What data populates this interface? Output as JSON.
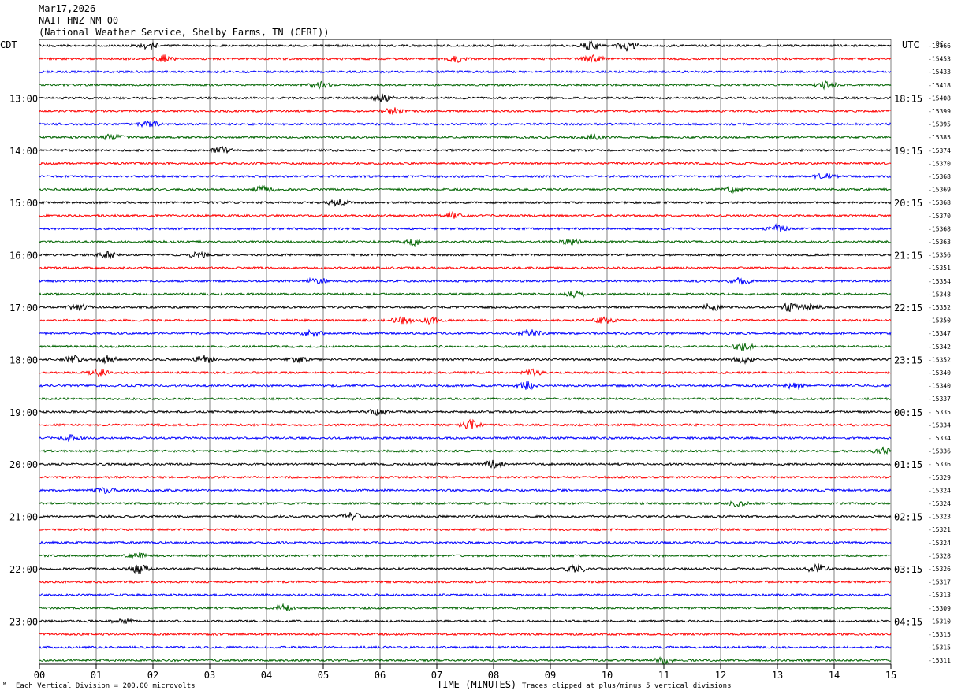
{
  "header": {
    "date": "Mar17,2026",
    "station": "NAIT HNZ NM 00",
    "network": "(National Weather Service, Shelby Farms, TN (CERI))"
  },
  "footer": {
    "scale_note": "Each Vertical Division =  200.00 microvolts",
    "x_title": "TIME (MINUTES)",
    "clip_note": "Traces clipped at plus/minus 5 vertical divisions"
  },
  "colors": {
    "trace_cycle": [
      "#000000",
      "#ff0000",
      "#0000ff",
      "#006400"
    ],
    "grid": "#808080"
  },
  "chart_data": {
    "type": "line",
    "title": "",
    "xlabel": "TIME (MINUTES)",
    "left_axis_title": "CDT",
    "right_axis_title": "UTC",
    "dc_label": "DC",
    "xlim": [
      0,
      15
    ],
    "x_ticks": [
      "00",
      "01",
      "02",
      "03",
      "04",
      "05",
      "06",
      "07",
      "08",
      "09",
      "10",
      "11",
      "12",
      "13",
      "14",
      "15"
    ],
    "trace_minutes": 15,
    "left_time_labels": [
      {
        "trace": 4,
        "text": "13:00"
      },
      {
        "trace": 8,
        "text": "14:00"
      },
      {
        "trace": 12,
        "text": "15:00"
      },
      {
        "trace": 16,
        "text": "16:00"
      },
      {
        "trace": 20,
        "text": "17:00"
      },
      {
        "trace": 24,
        "text": "18:00"
      },
      {
        "trace": 28,
        "text": "19:00"
      },
      {
        "trace": 32,
        "text": "20:00"
      },
      {
        "trace": 36,
        "text": "21:00"
      },
      {
        "trace": 40,
        "text": "22:00"
      },
      {
        "trace": 44,
        "text": "23:00"
      }
    ],
    "right_time_labels": [
      {
        "trace": 4,
        "text": "18:15"
      },
      {
        "trace": 8,
        "text": "19:15"
      },
      {
        "trace": 12,
        "text": "20:15"
      },
      {
        "trace": 16,
        "text": "21:15"
      },
      {
        "trace": 20,
        "text": "22:15"
      },
      {
        "trace": 24,
        "text": "23:15"
      },
      {
        "trace": 28,
        "text": "00:15"
      },
      {
        "trace": 32,
        "text": "01:15"
      },
      {
        "trace": 36,
        "text": "02:15"
      },
      {
        "trace": 40,
        "text": "03:15"
      },
      {
        "trace": 44,
        "text": "04:15"
      }
    ],
    "dc_offsets": [
      "-15466",
      "-15453",
      "-15433",
      "-15418",
      "-15408",
      "-15399",
      "-15395",
      "-15385",
      "-15374",
      "-15370",
      "-15368",
      "-15369",
      "-15368",
      "-15370",
      "-15368",
      "-15363",
      "-15356",
      "-15351",
      "-15354",
      "-15348",
      "-15352",
      "-15350",
      "-15347",
      "-15342",
      "-15352",
      "-15340",
      "-15340",
      "-15337",
      "-15335",
      "-15334",
      "-15334",
      "-15336",
      "-15336",
      "-15329",
      "-15324",
      "-15324",
      "-15323",
      "-15321",
      "-15324",
      "-15328",
      "-15326",
      "-15317",
      "-15313",
      "-15309",
      "-15310",
      "-15315",
      "-15315",
      "-15311"
    ],
    "events": [
      {
        "trace": 0,
        "min": 1.95,
        "amp": 1.8
      },
      {
        "trace": 0,
        "min": 9.7,
        "amp": 2.2
      },
      {
        "trace": 0,
        "min": 10.35,
        "amp": 2.4
      },
      {
        "trace": 1,
        "min": 2.2,
        "amp": 2.0
      },
      {
        "trace": 1,
        "min": 7.35,
        "amp": 1.4
      },
      {
        "trace": 1,
        "min": 9.75,
        "amp": 1.6
      },
      {
        "trace": 3,
        "min": 4.95,
        "amp": 1.6
      },
      {
        "trace": 3,
        "min": 13.85,
        "amp": 1.8
      },
      {
        "trace": 4,
        "min": 6.05,
        "amp": 2.0
      },
      {
        "trace": 5,
        "min": 6.2,
        "amp": 1.8
      },
      {
        "trace": 6,
        "min": 1.95,
        "amp": 1.6
      },
      {
        "trace": 7,
        "min": 1.3,
        "amp": 1.6
      },
      {
        "trace": 7,
        "min": 9.75,
        "amp": 1.4
      },
      {
        "trace": 8,
        "min": 3.2,
        "amp": 1.6
      },
      {
        "trace": 10,
        "min": 13.85,
        "amp": 1.8
      },
      {
        "trace": 11,
        "min": 3.95,
        "amp": 1.8
      },
      {
        "trace": 11,
        "min": 12.2,
        "amp": 1.4
      },
      {
        "trace": 12,
        "min": 5.25,
        "amp": 1.6
      },
      {
        "trace": 13,
        "min": 7.3,
        "amp": 1.6
      },
      {
        "trace": 14,
        "min": 13.0,
        "amp": 1.8
      },
      {
        "trace": 15,
        "min": 6.6,
        "amp": 1.5
      },
      {
        "trace": 15,
        "min": 9.35,
        "amp": 1.4
      },
      {
        "trace": 16,
        "min": 1.2,
        "amp": 1.8
      },
      {
        "trace": 16,
        "min": 2.8,
        "amp": 1.5
      },
      {
        "trace": 18,
        "min": 4.9,
        "amp": 1.6
      },
      {
        "trace": 18,
        "min": 12.35,
        "amp": 1.6
      },
      {
        "trace": 19,
        "min": 9.45,
        "amp": 1.4
      },
      {
        "trace": 20,
        "min": 0.7,
        "amp": 1.6
      },
      {
        "trace": 20,
        "min": 11.85,
        "amp": 1.6
      },
      {
        "trace": 20,
        "min": 13.2,
        "amp": 1.8
      },
      {
        "trace": 20,
        "min": 13.6,
        "amp": 1.6
      },
      {
        "trace": 21,
        "min": 6.4,
        "amp": 1.6
      },
      {
        "trace": 21,
        "min": 6.9,
        "amp": 1.5
      },
      {
        "trace": 21,
        "min": 9.95,
        "amp": 1.5
      },
      {
        "trace": 22,
        "min": 4.8,
        "amp": 1.6
      },
      {
        "trace": 22,
        "min": 8.65,
        "amp": 1.8
      },
      {
        "trace": 23,
        "min": 12.4,
        "amp": 1.8
      },
      {
        "trace": 24,
        "min": 0.6,
        "amp": 1.6
      },
      {
        "trace": 24,
        "min": 1.2,
        "amp": 1.6
      },
      {
        "trace": 24,
        "min": 2.9,
        "amp": 1.8
      },
      {
        "trace": 24,
        "min": 4.55,
        "amp": 1.4
      },
      {
        "trace": 24,
        "min": 12.4,
        "amp": 1.6
      },
      {
        "trace": 25,
        "min": 1.05,
        "amp": 1.6
      },
      {
        "trace": 25,
        "min": 8.7,
        "amp": 1.4
      },
      {
        "trace": 26,
        "min": 8.6,
        "amp": 1.8
      },
      {
        "trace": 26,
        "min": 13.3,
        "amp": 1.4
      },
      {
        "trace": 28,
        "min": 5.95,
        "amp": 1.4
      },
      {
        "trace": 29,
        "min": 7.6,
        "amp": 2.2
      },
      {
        "trace": 30,
        "min": 0.55,
        "amp": 1.6
      },
      {
        "trace": 31,
        "min": 14.85,
        "amp": 1.6
      },
      {
        "trace": 32,
        "min": 8.0,
        "amp": 1.8
      },
      {
        "trace": 34,
        "min": 1.15,
        "amp": 1.4
      },
      {
        "trace": 35,
        "min": 12.3,
        "amp": 1.4
      },
      {
        "trace": 36,
        "min": 5.5,
        "amp": 1.8
      },
      {
        "trace": 39,
        "min": 1.7,
        "amp": 1.8
      },
      {
        "trace": 40,
        "min": 1.75,
        "amp": 2.0
      },
      {
        "trace": 40,
        "min": 9.45,
        "amp": 2.0
      },
      {
        "trace": 40,
        "min": 13.7,
        "amp": 2.4
      },
      {
        "trace": 43,
        "min": 4.3,
        "amp": 1.4
      },
      {
        "trace": 44,
        "min": 1.45,
        "amp": 1.4
      },
      {
        "trace": 47,
        "min": 11.0,
        "amp": 1.4
      }
    ]
  }
}
